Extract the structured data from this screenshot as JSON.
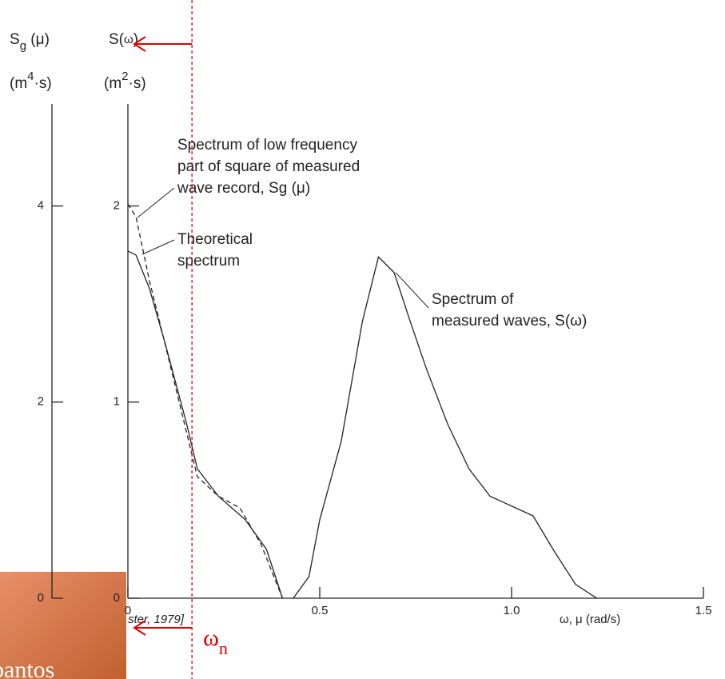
{
  "chart_data": {
    "type": "line",
    "ylabel": [
      "S(",
      "ω",
      ")"
    ],
    "yunit": [
      "(m",
      "2",
      "·s)"
    ],
    "y2label": [
      "S",
      "g",
      " (μ)"
    ],
    "y2unit": [
      "(m",
      "4",
      "·s)"
    ],
    "xlabel": "ω, μ  (rad/s)",
    "source": "ster, 1979]",
    "footer": "bantos",
    "xlim": [
      0,
      1.5
    ],
    "xticks": [
      0,
      0.5,
      {
        "value": 1.0,
        "label": "1.0"
      },
      1.5
    ],
    "ylim": [
      0,
      2.52
    ],
    "yticks": [
      0,
      1,
      2
    ],
    "y2lim": [
      0,
      5.04
    ],
    "y2ticks": [
      0,
      2,
      4
    ],
    "series": [
      {
        "name": "Theoretical spectrum",
        "color": "#222222",
        "dash": false,
        "x": [
          0,
          0.021,
          0.056,
          0.097,
          0.153,
          0.181,
          0.236,
          0.306,
          0.361,
          0.403
        ],
        "values": [
          1.77,
          1.75,
          1.58,
          1.3,
          0.89,
          0.66,
          0.52,
          0.4,
          0.25,
          0
        ]
      },
      {
        "name": "Spectrum of low frequency part of square of measured wave record, Sg (μ)",
        "color": "#222222",
        "dash": true,
        "axis": "y2",
        "x": [
          0,
          0.021,
          0.056,
          0.097,
          0.153,
          0.181,
          0.236,
          0.292,
          0.347,
          0.403
        ],
        "values": [
          4.02,
          3.89,
          3.24,
          2.59,
          1.69,
          1.24,
          1.04,
          0.92,
          0.55,
          0
        ]
      },
      {
        "name": "Spectrum of measured waves, S(ω)",
        "color": "#222222",
        "dash": false,
        "x": [
          0.431,
          0.472,
          0.5,
          0.556,
          0.611,
          0.653,
          0.694,
          0.736,
          0.778,
          0.833,
          0.889,
          0.944,
          1.0,
          1.056,
          1.111,
          1.167,
          1.222
        ],
        "values": [
          0,
          0.11,
          0.4,
          0.8,
          1.41,
          1.74,
          1.66,
          1.41,
          1.17,
          0.89,
          0.66,
          0.52,
          0.47,
          0.42,
          0.24,
          0.07,
          0
        ]
      }
    ],
    "annotations": [
      [
        "Spectrum of low frequency",
        "part of square of measured",
        "wave record, Sg (μ)"
      ],
      [
        "Theoretical",
        "spectrum"
      ],
      [
        "Spectrum of",
        "measured waves, S(ω)"
      ]
    ],
    "marker": {
      "x": 0.167,
      "color": "#e00000",
      "label": "ω",
      "subscript": "n"
    }
  }
}
